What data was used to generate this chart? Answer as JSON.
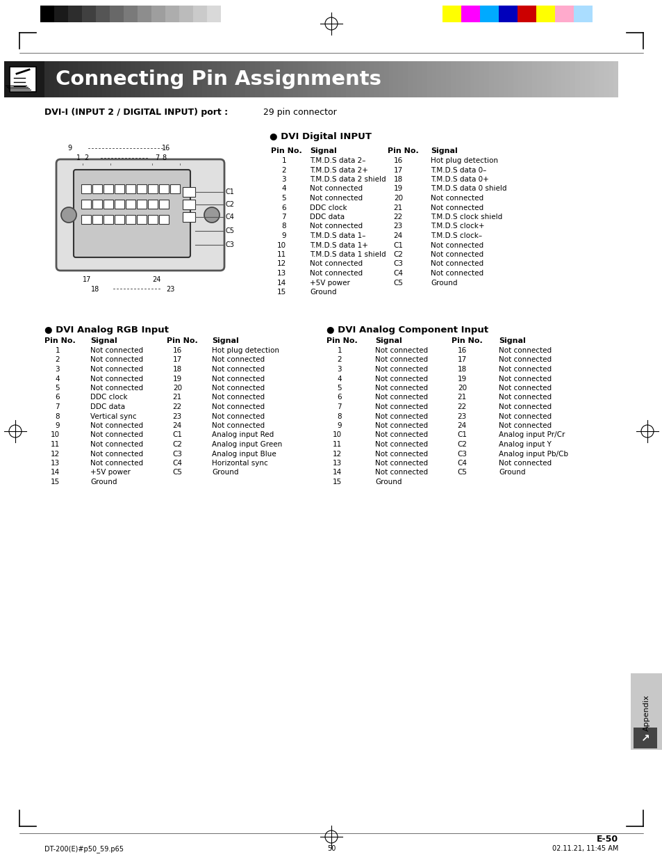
{
  "title": "Connecting Pin Assignments",
  "dvi_digital_header": "● DVI Digital INPUT",
  "dvi_analog_rgb_header": "● DVI Analog RGB Input",
  "dvi_analog_comp_header": "● DVI Analog Component Input",
  "digital_left": [
    [
      "1",
      "T.M.D.S data 2–"
    ],
    [
      "2",
      "T.M.D.S data 2+"
    ],
    [
      "3",
      "T.M.D.S data 2 shield"
    ],
    [
      "4",
      "Not connected"
    ],
    [
      "5",
      "Not connected"
    ],
    [
      "6",
      "DDC clock"
    ],
    [
      "7",
      "DDC data"
    ],
    [
      "8",
      "Not connected"
    ],
    [
      "9",
      "T.M.D.S data 1–"
    ],
    [
      "10",
      "T.M.D.S data 1+"
    ],
    [
      "11",
      "T.M.D.S data 1 shield"
    ],
    [
      "12",
      "Not connected"
    ],
    [
      "13",
      "Not connected"
    ],
    [
      "14",
      "+5V power"
    ],
    [
      "15",
      "Ground"
    ]
  ],
  "digital_right": [
    [
      "16",
      "Hot plug detection"
    ],
    [
      "17",
      "T.M.D.S data 0–"
    ],
    [
      "18",
      "T.M.D.S data 0+"
    ],
    [
      "19",
      "T.M.D.S data 0 shield"
    ],
    [
      "20",
      "Not connected"
    ],
    [
      "21",
      "Not connected"
    ],
    [
      "22",
      "T.M.D.S clock shield"
    ],
    [
      "23",
      "T.M.D.S clock+"
    ],
    [
      "24",
      "T.M.D.S clock–"
    ],
    [
      "C1",
      "Not connected"
    ],
    [
      "C2",
      "Not connected"
    ],
    [
      "C3",
      "Not connected"
    ],
    [
      "C4",
      "Not connected"
    ],
    [
      "C5",
      "Ground"
    ]
  ],
  "rgb_left": [
    [
      "1",
      "Not connected"
    ],
    [
      "2",
      "Not connected"
    ],
    [
      "3",
      "Not connected"
    ],
    [
      "4",
      "Not connected"
    ],
    [
      "5",
      "Not connected"
    ],
    [
      "6",
      "DDC clock"
    ],
    [
      "7",
      "DDC data"
    ],
    [
      "8",
      "Vertical sync"
    ],
    [
      "9",
      "Not connected"
    ],
    [
      "10",
      "Not connected"
    ],
    [
      "11",
      "Not connected"
    ],
    [
      "12",
      "Not connected"
    ],
    [
      "13",
      "Not connected"
    ],
    [
      "14",
      "+5V power"
    ],
    [
      "15",
      "Ground"
    ]
  ],
  "rgb_right": [
    [
      "16",
      "Hot plug detection"
    ],
    [
      "17",
      "Not connected"
    ],
    [
      "18",
      "Not connected"
    ],
    [
      "19",
      "Not connected"
    ],
    [
      "20",
      "Not connected"
    ],
    [
      "21",
      "Not connected"
    ],
    [
      "22",
      "Not connected"
    ],
    [
      "23",
      "Not connected"
    ],
    [
      "24",
      "Not connected"
    ],
    [
      "C1",
      "Analog input Red"
    ],
    [
      "C2",
      "Analog input Green"
    ],
    [
      "C3",
      "Analog input Blue"
    ],
    [
      "C4",
      "Horizontal sync"
    ],
    [
      "C5",
      "Ground"
    ]
  ],
  "comp_left": [
    [
      "1",
      "Not connected"
    ],
    [
      "2",
      "Not connected"
    ],
    [
      "3",
      "Not connected"
    ],
    [
      "4",
      "Not connected"
    ],
    [
      "5",
      "Not connected"
    ],
    [
      "6",
      "Not connected"
    ],
    [
      "7",
      "Not connected"
    ],
    [
      "8",
      "Not connected"
    ],
    [
      "9",
      "Not connected"
    ],
    [
      "10",
      "Not connected"
    ],
    [
      "11",
      "Not connected"
    ],
    [
      "12",
      "Not connected"
    ],
    [
      "13",
      "Not connected"
    ],
    [
      "14",
      "Not connected"
    ],
    [
      "15",
      "Ground"
    ]
  ],
  "comp_right": [
    [
      "16",
      "Not connected"
    ],
    [
      "17",
      "Not connected"
    ],
    [
      "18",
      "Not connected"
    ],
    [
      "19",
      "Not connected"
    ],
    [
      "20",
      "Not connected"
    ],
    [
      "21",
      "Not connected"
    ],
    [
      "22",
      "Not connected"
    ],
    [
      "23",
      "Not connected"
    ],
    [
      "24",
      "Not connected"
    ],
    [
      "C1",
      "Analog input Pr/Cr"
    ],
    [
      "C2",
      "Analog input Y"
    ],
    [
      "C3",
      "Analog input Pb/Cb"
    ],
    [
      "C4",
      "Not connected"
    ],
    [
      "C5",
      "Ground"
    ]
  ],
  "page_number": "E-50",
  "footer_left": "DT-200(E)#p50_59.p65",
  "footer_center": "50",
  "footer_right": "02.11.21, 11:45 AM",
  "gs_colors": [
    "#000000",
    "#1a1a1a",
    "#2d2d2d",
    "#404040",
    "#555555",
    "#686868",
    "#7a7a7a",
    "#8d8d8d",
    "#9e9e9e",
    "#adadad",
    "#bbbbbb",
    "#cacaca",
    "#d9d9d9"
  ],
  "color_bars": [
    "#ffff00",
    "#ff00ff",
    "#00aaff",
    "#0000bb",
    "#cc0000",
    "#ffff00",
    "#ffaacc",
    "#aaddff"
  ],
  "bg_color": "#ffffff"
}
